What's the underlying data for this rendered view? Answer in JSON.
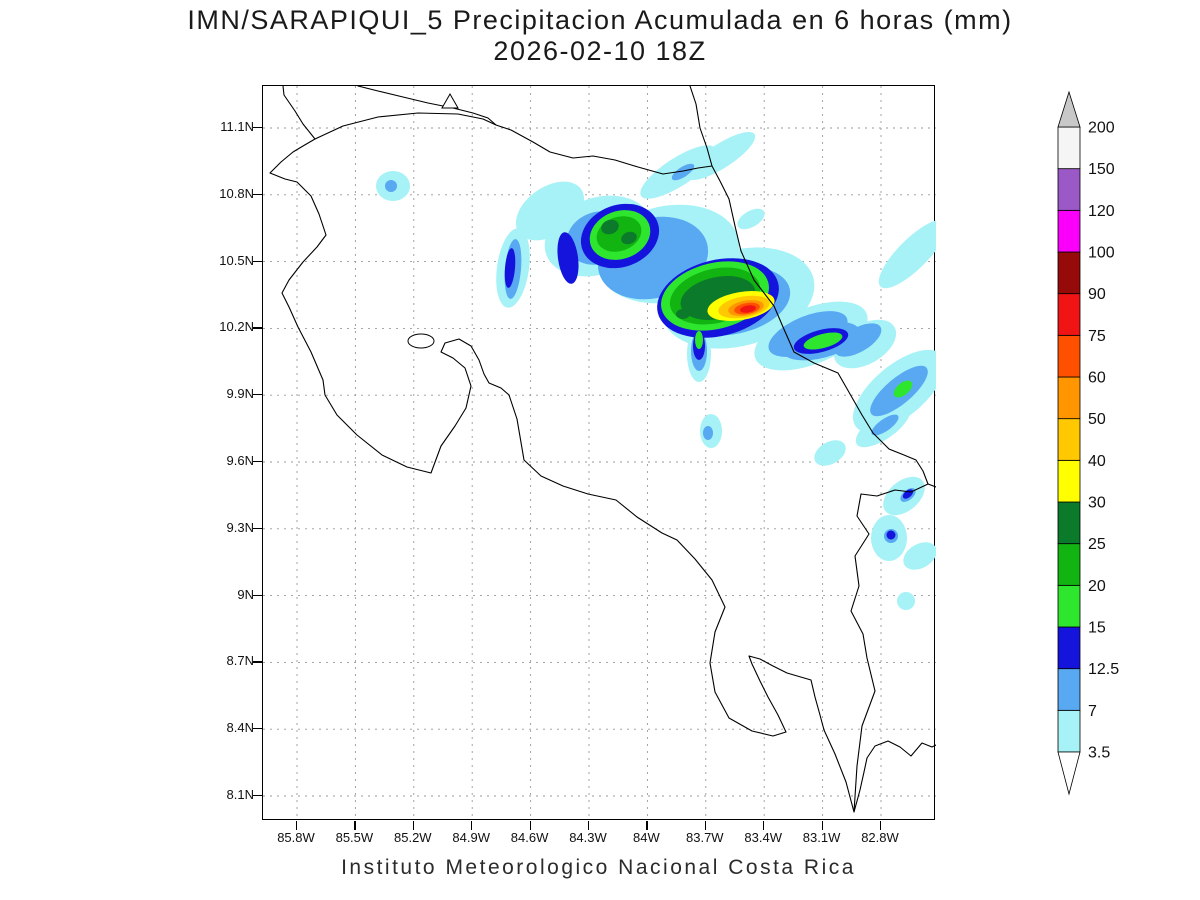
{
  "title": {
    "line1": "IMN/SARAPIQUI_5 Precipitacion Acumulada en 6 horas (mm)",
    "line2": "2026-02-10 18Z"
  },
  "footer": "Instituto Meteorologico Nacional Costa Rica",
  "chart_data": {
    "type": "heatmap",
    "title": "IMN/SARAPIQUI_5 Precipitacion Acumulada en 6 horas (mm)",
    "subtitle": "2026-02-10 18Z",
    "units": "mm",
    "valid_time": "2026-02-10 18Z",
    "region": "Costa Rica",
    "grid": "dashed",
    "lat_ticks": [
      "11.1N",
      "10.8N",
      "10.5N",
      "10.2N",
      "9.9N",
      "9.6N",
      "9.3N",
      "9N",
      "8.7N",
      "8.4N",
      "8.1N"
    ],
    "lon_ticks": [
      "85.8W",
      "85.5W",
      "85.2W",
      "84.9W",
      "84.6W",
      "84.3W",
      "84W",
      "83.7W",
      "83.4W",
      "83.1W",
      "82.8W"
    ],
    "lon_range_deg_w": [
      86.0,
      82.5
    ],
    "lat_range_deg_n": [
      8.0,
      11.3
    ],
    "colorbar": {
      "position": "right",
      "levels": [
        3.5,
        7,
        12.5,
        15,
        20,
        25,
        30,
        40,
        50,
        60,
        75,
        90,
        100,
        120,
        150,
        200
      ],
      "colors_low_to_high": [
        "#ffffff",
        "#a6f2f7",
        "#58a8f2",
        "#1414dc",
        "#2ee62e",
        "#12b412",
        "#0b7a2a",
        "#ffff00",
        "#ffc800",
        "#ff9600",
        "#ff5000",
        "#f01414",
        "#960a0a",
        "#fa00fa",
        "#9b59c8",
        "#f5f5f5",
        "#c8c8c8"
      ]
    },
    "features": [
      {
        "name": "main-rain-core",
        "approx_lon_w": 83.45,
        "approx_lat_n": 10.28,
        "peak_mm_band": "60-75",
        "description": "Red maximum ringed by orange, gold, yellow and green shades over the Sarapiqui / northern cordillera area"
      },
      {
        "name": "secondary-cell",
        "approx_lon_w": 83.9,
        "approx_lat_n": 10.6,
        "peak_mm_band": "25-30",
        "description": "Green cell rimmed with dark blue northwest of the main core"
      },
      {
        "name": "coastal-blue-cell",
        "approx_lon_w": 83.1,
        "approx_lat_n": 10.15,
        "peak_mm_band": "15-20",
        "description": "Blue/green cell near the central Caribbean coast east of the main core"
      },
      {
        "name": "north-coast-streaks",
        "approx_lon_w": 83.55,
        "approx_lat_n": 10.95,
        "peak_mm_band": "7-12.5",
        "description": "Two elongated cyan streaks near the northern Caribbean coast"
      },
      {
        "name": "talamanca-streaks",
        "approx_lon_w": 82.7,
        "approx_lat_n": 9.9,
        "peak_mm_band": "15-20",
        "description": "Diagonal cyan/blue bands with a small green spot over the southeastern Caribbean slope"
      },
      {
        "name": "scattered-light-patches",
        "peak_mm_band": "3.5-12.5",
        "description": "Scattered pale-cyan patches with small blue cores over the east and southeast"
      }
    ]
  }
}
